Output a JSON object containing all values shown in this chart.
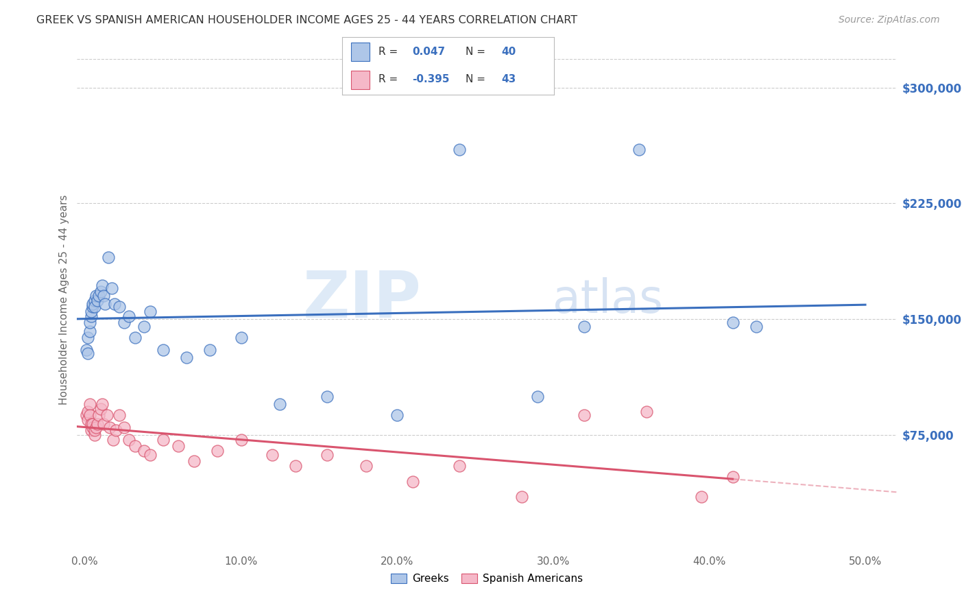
{
  "title": "GREEK VS SPANISH AMERICAN HOUSEHOLDER INCOME AGES 25 - 44 YEARS CORRELATION CHART",
  "source": "Source: ZipAtlas.com",
  "ylabel": "Householder Income Ages 25 - 44 years",
  "xlabel_ticks": [
    "0.0%",
    "10.0%",
    "20.0%",
    "30.0%",
    "40.0%",
    "50.0%"
  ],
  "xlabel_vals": [
    0.0,
    0.1,
    0.2,
    0.3,
    0.4,
    0.5
  ],
  "ylabel_ticks": [
    "$75,000",
    "$150,000",
    "$225,000",
    "$300,000"
  ],
  "ylabel_vals": [
    75000,
    150000,
    225000,
    300000
  ],
  "ylim": [
    0,
    325000
  ],
  "xlim": [
    -0.005,
    0.52
  ],
  "greek_R": "0.047",
  "greek_N": "40",
  "spanish_R": "-0.395",
  "spanish_N": "43",
  "greek_color": "#aec6e8",
  "greek_line_color": "#3a6fbe",
  "spanish_color": "#f5b8c8",
  "spanish_line_color": "#d9546e",
  "watermark_zip": "ZIP",
  "watermark_atlas": "atlas",
  "background_color": "#ffffff",
  "grid_color": "#cccccc",
  "greek_x": [
    0.001,
    0.002,
    0.002,
    0.003,
    0.003,
    0.004,
    0.004,
    0.005,
    0.005,
    0.006,
    0.006,
    0.007,
    0.008,
    0.009,
    0.01,
    0.011,
    0.012,
    0.013,
    0.015,
    0.017,
    0.019,
    0.022,
    0.025,
    0.028,
    0.032,
    0.038,
    0.042,
    0.05,
    0.065,
    0.08,
    0.1,
    0.125,
    0.155,
    0.2,
    0.24,
    0.29,
    0.32,
    0.355,
    0.415,
    0.43
  ],
  "greek_y": [
    130000,
    128000,
    138000,
    142000,
    148000,
    152000,
    155000,
    158000,
    160000,
    162000,
    158000,
    165000,
    162000,
    165000,
    168000,
    172000,
    165000,
    160000,
    190000,
    170000,
    160000,
    158000,
    148000,
    152000,
    138000,
    145000,
    155000,
    130000,
    125000,
    130000,
    138000,
    95000,
    100000,
    88000,
    260000,
    100000,
    145000,
    260000,
    148000,
    145000
  ],
  "spanish_x": [
    0.001,
    0.002,
    0.002,
    0.003,
    0.003,
    0.004,
    0.004,
    0.005,
    0.005,
    0.006,
    0.006,
    0.007,
    0.008,
    0.009,
    0.01,
    0.011,
    0.012,
    0.014,
    0.016,
    0.018,
    0.02,
    0.022,
    0.025,
    0.028,
    0.032,
    0.038,
    0.042,
    0.05,
    0.06,
    0.07,
    0.085,
    0.1,
    0.12,
    0.135,
    0.155,
    0.18,
    0.21,
    0.24,
    0.28,
    0.32,
    0.36,
    0.395,
    0.415
  ],
  "spanish_y": [
    88000,
    85000,
    90000,
    95000,
    88000,
    82000,
    78000,
    80000,
    82000,
    75000,
    78000,
    80000,
    82000,
    88000,
    92000,
    95000,
    82000,
    88000,
    80000,
    72000,
    78000,
    88000,
    80000,
    72000,
    68000,
    65000,
    62000,
    72000,
    68000,
    58000,
    65000,
    72000,
    62000,
    55000,
    62000,
    55000,
    45000,
    55000,
    35000,
    88000,
    90000,
    35000,
    48000
  ]
}
